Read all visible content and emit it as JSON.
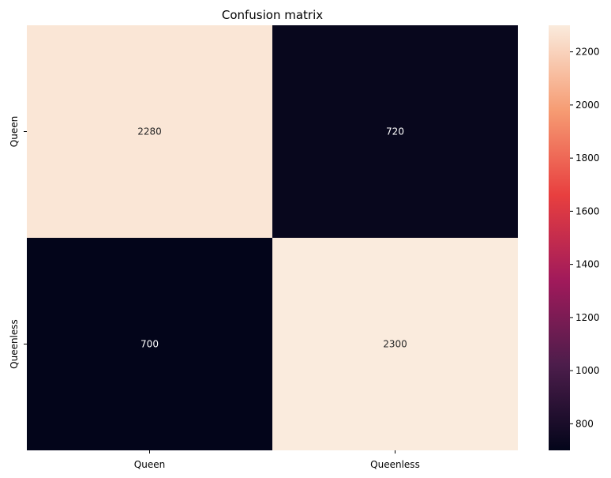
{
  "chart_data": {
    "type": "heatmap",
    "title": "Confusion matrix",
    "x_categories": [
      "Queen",
      "Queenless"
    ],
    "y_categories": [
      "Queen",
      "Queenless"
    ],
    "values": [
      [
        2280,
        720
      ],
      [
        700,
        2300
      ]
    ],
    "colorbar": {
      "min": 700,
      "max": 2300,
      "ticks": [
        800,
        1000,
        1200,
        1400,
        1600,
        1800,
        2000,
        2200
      ]
    },
    "colormap": [
      "#03051a",
      "#4c1d4b",
      "#a11a5b",
      "#e83f3f",
      "#f69c73",
      "#faebdd"
    ]
  }
}
